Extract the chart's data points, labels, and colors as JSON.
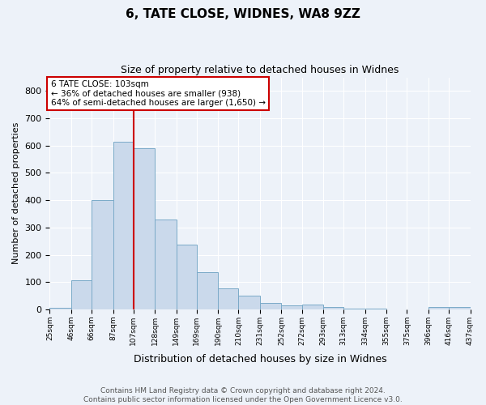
{
  "title1": "6, TATE CLOSE, WIDNES, WA8 9ZZ",
  "title2": "Size of property relative to detached houses in Widnes",
  "xlabel": "Distribution of detached houses by size in Widnes",
  "ylabel": "Number of detached properties",
  "bin_edges": [
    25,
    46,
    66,
    87,
    107,
    128,
    149,
    169,
    190,
    210,
    231,
    252,
    272,
    293,
    313,
    334,
    355,
    375,
    396,
    416,
    437
  ],
  "bin_labels": [
    "25sqm",
    "46sqm",
    "66sqm",
    "87sqm",
    "107sqm",
    "128sqm",
    "149sqm",
    "169sqm",
    "190sqm",
    "210sqm",
    "231sqm",
    "252sqm",
    "272sqm",
    "293sqm",
    "313sqm",
    "334sqm",
    "355sqm",
    "375sqm",
    "396sqm",
    "416sqm",
    "437sqm"
  ],
  "counts": [
    7,
    107,
    400,
    615,
    590,
    330,
    237,
    135,
    78,
    50,
    23,
    15,
    18,
    8,
    4,
    2,
    1,
    0,
    8,
    10
  ],
  "bar_color": "#cad9eb",
  "bar_edge_color": "#7aaac8",
  "red_line_x": 107,
  "annotation_text": "6 TATE CLOSE: 103sqm\n← 36% of detached houses are smaller (938)\n64% of semi-detached houses are larger (1,650) →",
  "annotation_box_color": "#ffffff",
  "annotation_box_edge_color": "#cc0000",
  "red_line_color": "#cc0000",
  "ylim": [
    0,
    850
  ],
  "yticks": [
    0,
    100,
    200,
    300,
    400,
    500,
    600,
    700,
    800
  ],
  "footer1": "Contains HM Land Registry data © Crown copyright and database right 2024.",
  "footer2": "Contains public sector information licensed under the Open Government Licence v3.0.",
  "bg_color": "#edf2f9",
  "plot_bg_color": "#edf2f9",
  "title1_fontsize": 11,
  "title2_fontsize": 9,
  "ylabel_fontsize": 8,
  "xlabel_fontsize": 9,
  "annotation_fontsize": 7.5,
  "footer_fontsize": 6.5
}
